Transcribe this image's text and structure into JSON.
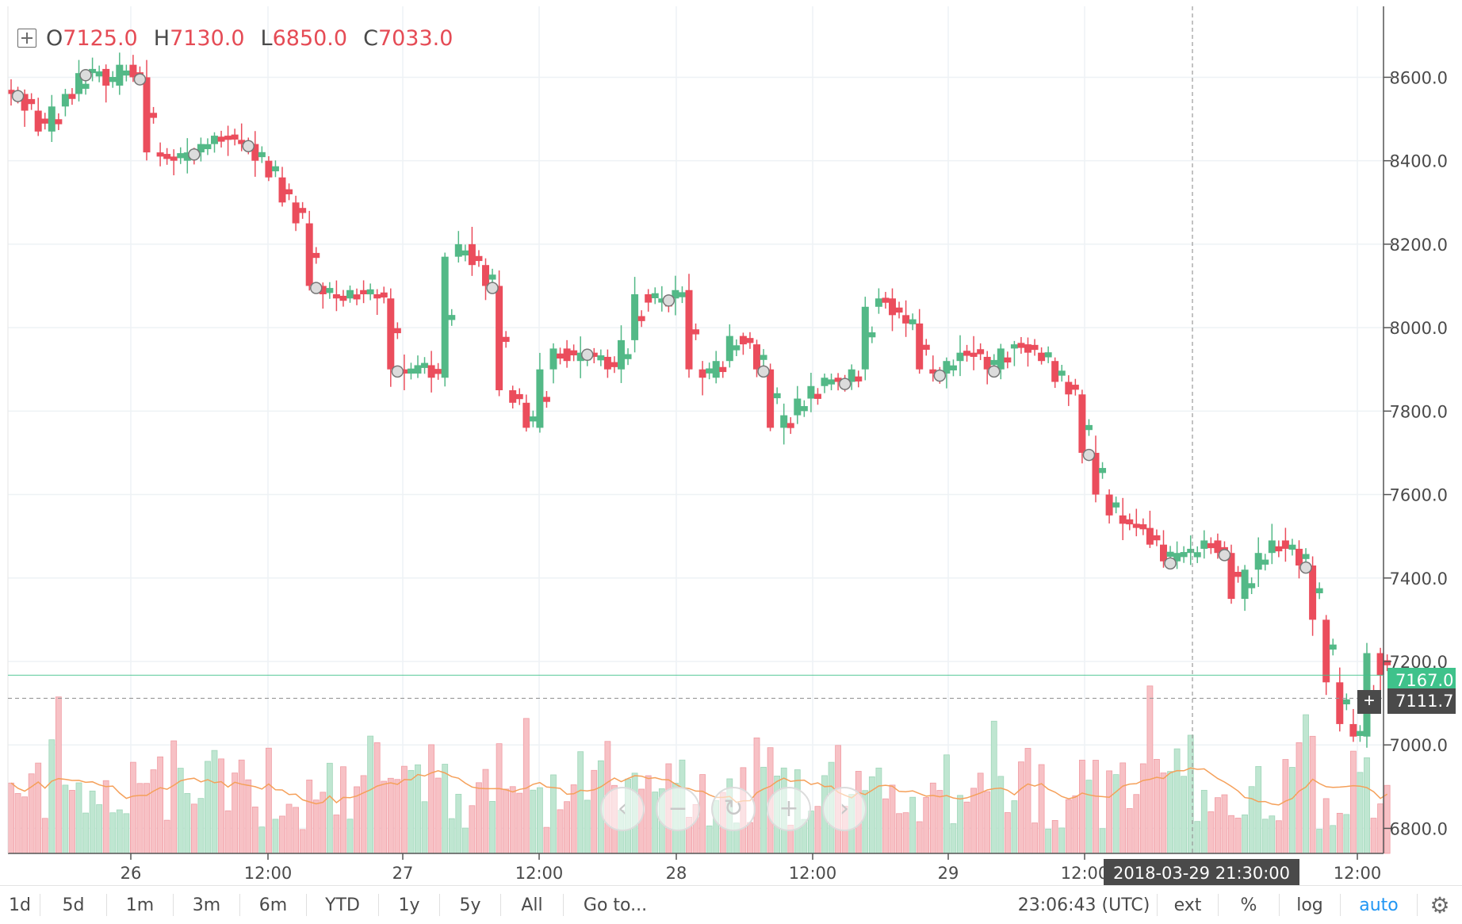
{
  "ohlc": {
    "o_label": "O",
    "o": "7125.0",
    "h_label": "H",
    "h": "7130.0",
    "l_label": "L",
    "l": "6850.0",
    "c_label": "C",
    "c": "7033.0"
  },
  "last_price_tag": "7167.0",
  "crosshair_price_tag": "7111.7",
  "crosshair_time_tag": "2018-03-29 21:30:00",
  "toolbar": {
    "ranges": [
      "1d",
      "5d",
      "1m",
      "3m",
      "6m",
      "YTD",
      "1y",
      "5y",
      "All"
    ],
    "goto": "Go to...",
    "clock": "23:06:43 (UTC)",
    "ext": "ext",
    "percent": "%",
    "log": "log",
    "auto": "auto"
  },
  "colors": {
    "up": "#53b987",
    "down": "#eb4d5c",
    "vol_up": "#bfe6d1",
    "vol_down": "#f7c1c5",
    "ma": "#f5a05a",
    "grid": "#eef2f5",
    "last_line": "#3fc28b"
  },
  "chart_data": {
    "type": "candlestick",
    "symbol_interval": "30m",
    "y_axis": {
      "ticks": [
        6800,
        7000,
        7200,
        7400,
        7600,
        7800,
        8000,
        8200,
        8400,
        8600
      ],
      "tick_labels": [
        "6800.0",
        "7000.0",
        "7200.0",
        "7400.0",
        "7600.0",
        "7800.0",
        "8000.0",
        "8200.0",
        "8400.0",
        "8600.0"
      ],
      "range": [
        6740,
        8770
      ],
      "side": "right"
    },
    "x_axis": {
      "tick_labels": [
        "26",
        "12:00",
        "27",
        "12:00",
        "28",
        "12:00",
        "29",
        "12:00",
        "12:00"
      ]
    },
    "last_price": 7167.0,
    "crosshair_price": 7111.7,
    "close_path": [
      8560,
      8520,
      8470,
      8530,
      8560,
      8610,
      8620,
      8580,
      8630,
      8600,
      8420,
      8410,
      8400,
      8420,
      8440,
      8460,
      8450,
      8440,
      8400,
      8360,
      8300,
      8250,
      8100,
      8080,
      8070,
      8090,
      8080,
      8070,
      7900,
      7890,
      7910,
      7880,
      8170,
      8200,
      8150,
      8100,
      7850,
      7820,
      7760,
      7900,
      7950,
      7920,
      7940,
      7930,
      7900,
      7970,
      8080,
      8060,
      8070,
      8090,
      7900,
      7880,
      7920,
      7980,
      7960,
      7900,
      7760,
      7790,
      7830,
      7860,
      7880,
      7870,
      7900,
      8050,
      8070,
      8030,
      8010,
      7900,
      7890,
      7920,
      7940,
      7930,
      7900,
      7950,
      7960,
      7940,
      7920,
      7870,
      7840,
      7700,
      7600,
      7550,
      7530,
      7520,
      7480,
      7440,
      7460,
      7470,
      7490,
      7460,
      7350,
      7420,
      7460,
      7490,
      7470,
      7430,
      7300,
      7150,
      7050,
      7020,
      7220,
      7167
    ],
    "markers_note": "circle event markers on candles"
  }
}
